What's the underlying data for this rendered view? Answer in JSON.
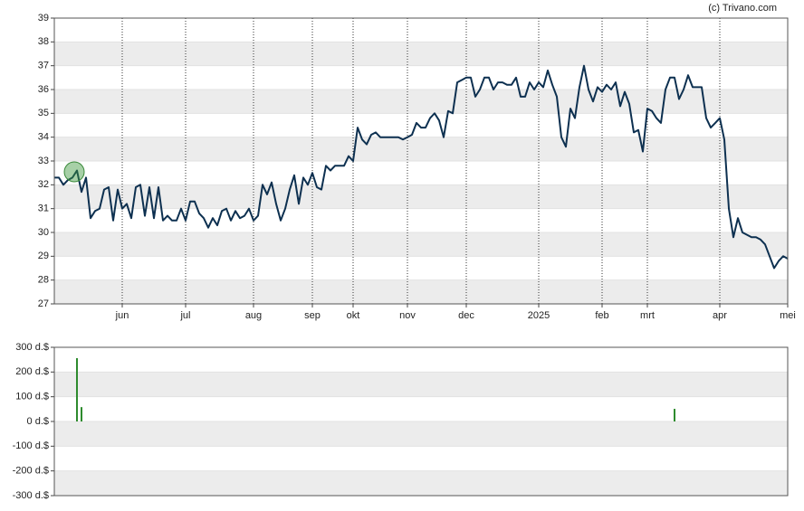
{
  "source": "(c) Trivano.com",
  "chart_data": [
    {
      "type": "line",
      "color": "#0d3050",
      "grid": true,
      "ylim": [
        27,
        39
      ],
      "yticks": [
        27,
        28,
        29,
        30,
        31,
        32,
        33,
        34,
        35,
        36,
        37,
        38,
        39
      ],
      "categories": [
        null,
        null,
        null,
        null,
        null,
        null,
        null,
        null,
        null,
        null,
        null,
        null,
        null,
        null,
        null,
        "jun",
        null,
        null,
        null,
        null,
        null,
        null,
        null,
        null,
        null,
        null,
        null,
        null,
        null,
        "jul",
        null,
        null,
        null,
        null,
        null,
        null,
        null,
        null,
        null,
        null,
        null,
        null,
        null,
        null,
        "aug",
        null,
        null,
        null,
        null,
        null,
        null,
        null,
        null,
        null,
        null,
        null,
        null,
        "sep",
        null,
        null,
        null,
        null,
        null,
        null,
        null,
        null,
        "okt",
        null,
        null,
        null,
        null,
        null,
        null,
        null,
        null,
        null,
        null,
        null,
        "nov",
        null,
        null,
        null,
        null,
        null,
        null,
        null,
        null,
        null,
        null,
        null,
        null,
        "dec",
        null,
        null,
        null,
        null,
        null,
        null,
        null,
        null,
        null,
        null,
        null,
        null,
        null,
        null,
        null,
        "2025",
        null,
        null,
        null,
        null,
        null,
        null,
        null,
        null,
        null,
        null,
        null,
        null,
        null,
        "feb",
        null,
        null,
        null,
        null,
        null,
        null,
        null,
        null,
        null,
        "mrt",
        null,
        null,
        null,
        null,
        null,
        null,
        null,
        null,
        null,
        null,
        null,
        null,
        null,
        null,
        null,
        "apr",
        null,
        null,
        null,
        null,
        null,
        null,
        null,
        null,
        null,
        null,
        null,
        null,
        null,
        null,
        "mei"
      ],
      "values": [
        32.3,
        32.3,
        32.0,
        32.2,
        32.3,
        32.6,
        31.7,
        32.3,
        30.6,
        30.9,
        31.0,
        31.8,
        31.9,
        30.5,
        31.8,
        31.0,
        31.2,
        30.6,
        31.9,
        32.0,
        30.7,
        31.9,
        30.6,
        31.9,
        30.5,
        30.7,
        30.5,
        30.5,
        31.0,
        30.5,
        31.3,
        31.3,
        30.8,
        30.6,
        30.2,
        30.6,
        30.3,
        30.9,
        31.0,
        30.5,
        30.9,
        30.6,
        30.7,
        31.0,
        30.5,
        30.7,
        32.0,
        31.6,
        32.1,
        31.2,
        30.5,
        31.0,
        31.8,
        32.4,
        31.2,
        32.3,
        32.0,
        32.5,
        31.9,
        31.8,
        32.8,
        32.6,
        32.8,
        32.8,
        32.8,
        33.2,
        33.0,
        34.4,
        33.9,
        33.7,
        34.1,
        34.2,
        34.0,
        34.0,
        34.0,
        34.0,
        34.0,
        33.9,
        34.0,
        34.1,
        34.6,
        34.4,
        34.4,
        34.8,
        35.0,
        34.7,
        34.0,
        35.1,
        35.0,
        36.3,
        36.4,
        36.5,
        36.5,
        35.7,
        36.0,
        36.5,
        36.5,
        36.0,
        36.3,
        36.3,
        36.2,
        36.2,
        36.5,
        35.7,
        35.7,
        36.3,
        36.0,
        36.3,
        36.1,
        36.8,
        36.2,
        35.7,
        34.0,
        33.6,
        35.2,
        34.8,
        36.1,
        37.0,
        36.0,
        35.5,
        36.1,
        35.9,
        36.2,
        36.0,
        36.3,
        35.3,
        35.9,
        35.4,
        34.2,
        34.3,
        33.4,
        35.2,
        35.1,
        34.8,
        34.6,
        36.0,
        36.5,
        36.5,
        35.6,
        36.0,
        36.6,
        36.1,
        36.1,
        36.1,
        34.8,
        34.4,
        34.6,
        34.8,
        33.9,
        31.0,
        29.8,
        30.6,
        30.0,
        29.9,
        29.8,
        29.8,
        29.7,
        29.5,
        29.0,
        28.5,
        28.8,
        29.0,
        28.9
      ]
    },
    {
      "type": "bar",
      "color": "#2e8b2e",
      "grid": true,
      "ylim": [
        -300,
        300
      ],
      "yticks": [
        {
          "value": -300,
          "label": "-300 d.$"
        },
        {
          "value": -200,
          "label": "-200 d.$"
        },
        {
          "value": -100,
          "label": "-100 d.$"
        },
        {
          "value": 0,
          "label": "0 d.$"
        },
        {
          "value": 100,
          "label": "100 d.$"
        },
        {
          "value": 200,
          "label": "200 d.$"
        },
        {
          "value": 300,
          "label": "300 d.$"
        }
      ],
      "categories": [
        null,
        null,
        null,
        null,
        null,
        null,
        null,
        null,
        null,
        null,
        null,
        null,
        null,
        null,
        null,
        null,
        null,
        null,
        null,
        null,
        null,
        null,
        null,
        null,
        null,
        null,
        null,
        null,
        null,
        null,
        null,
        null,
        null,
        null,
        null,
        null,
        null,
        null,
        null,
        null,
        null,
        null,
        null,
        null,
        null,
        null,
        null,
        null,
        null,
        null,
        null,
        null,
        null,
        null,
        null,
        null,
        null,
        null,
        null,
        null,
        null,
        null,
        null,
        null,
        null,
        null,
        null,
        null,
        null,
        null,
        null,
        null,
        null,
        null,
        null,
        null,
        null,
        null,
        null,
        null,
        null,
        null,
        null,
        null,
        null,
        null,
        null,
        null,
        null,
        null,
        null,
        null,
        null,
        null,
        null,
        null,
        null,
        null,
        null,
        null,
        null,
        null,
        null,
        null,
        null,
        null,
        null,
        null,
        null,
        null,
        null,
        null,
        null,
        null,
        null,
        null,
        null,
        null,
        null,
        null,
        null,
        null,
        null,
        null,
        null,
        null,
        null,
        null,
        null,
        null,
        null,
        null,
        null,
        null,
        null,
        null,
        null,
        null,
        null,
        null,
        null,
        null,
        null,
        null,
        null,
        null,
        null,
        null,
        null,
        null,
        null,
        null,
        null,
        null,
        null,
        null,
        null,
        null,
        null,
        null,
        null,
        null,
        null
      ],
      "values": [
        null,
        null,
        null,
        null,
        null,
        256,
        58,
        null,
        null,
        null,
        null,
        null,
        null,
        null,
        null,
        null,
        null,
        null,
        null,
        null,
        null,
        null,
        null,
        null,
        null,
        null,
        null,
        null,
        null,
        null,
        null,
        null,
        null,
        null,
        null,
        null,
        null,
        null,
        null,
        null,
        null,
        null,
        null,
        null,
        null,
        null,
        null,
        null,
        null,
        null,
        null,
        null,
        null,
        null,
        null,
        null,
        null,
        null,
        null,
        null,
        null,
        null,
        null,
        null,
        null,
        null,
        null,
        null,
        null,
        null,
        null,
        null,
        null,
        null,
        null,
        null,
        null,
        null,
        null,
        null,
        null,
        null,
        null,
        null,
        null,
        null,
        null,
        null,
        null,
        null,
        null,
        null,
        null,
        null,
        null,
        null,
        null,
        null,
        null,
        null,
        null,
        null,
        null,
        null,
        null,
        null,
        null,
        null,
        null,
        null,
        null,
        null,
        null,
        null,
        null,
        null,
        null,
        null,
        null,
        null,
        null,
        null,
        null,
        null,
        null,
        null,
        null,
        null,
        null,
        null,
        null,
        null,
        null,
        null,
        null,
        null,
        null,
        51,
        null,
        null,
        null,
        null,
        null,
        null,
        null,
        null,
        null,
        null,
        null,
        null,
        null,
        null,
        null,
        null,
        null,
        null,
        null,
        null,
        null,
        null,
        null,
        null,
        null
      ]
    }
  ]
}
